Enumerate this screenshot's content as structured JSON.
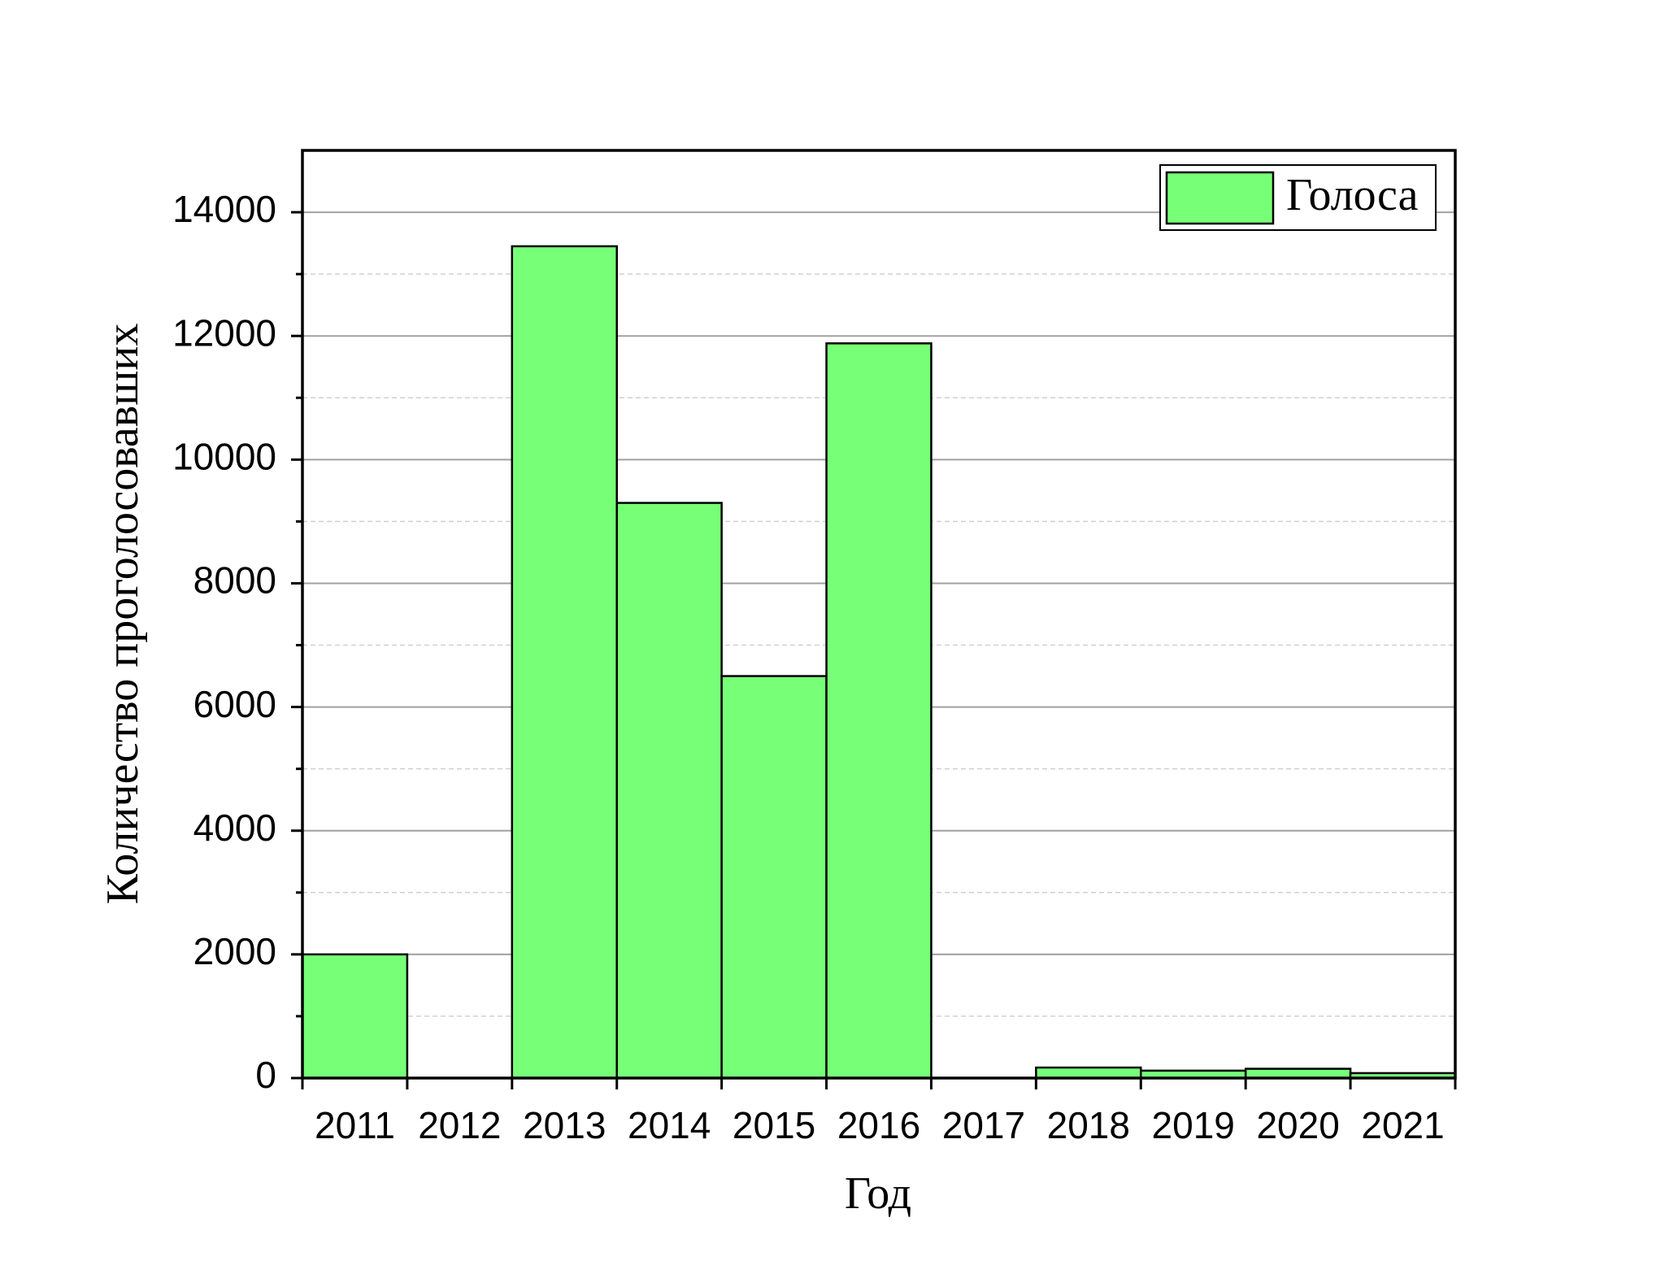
{
  "chart_data": {
    "type": "bar",
    "x_label": "Год",
    "y_label": "Количество проголосовавших",
    "categories": [
      "2011",
      "2012",
      "2013",
      "2014",
      "2015",
      "2016",
      "2017",
      "2018",
      "2019",
      "2020",
      "2021"
    ],
    "series": [
      {
        "name": "Голоса",
        "color": "#77ff77",
        "values": [
          2000,
          0,
          13450,
          9300,
          6500,
          11880,
          0,
          170,
          120,
          150,
          80
        ]
      }
    ],
    "ylim": [
      0,
      15000
    ],
    "yticks": [
      0,
      2000,
      4000,
      6000,
      8000,
      10000,
      12000,
      14000
    ],
    "minor_yticks": [
      1000,
      3000,
      5000,
      7000,
      9000,
      11000,
      13000
    ],
    "grid": true,
    "legend": "top-right"
  }
}
